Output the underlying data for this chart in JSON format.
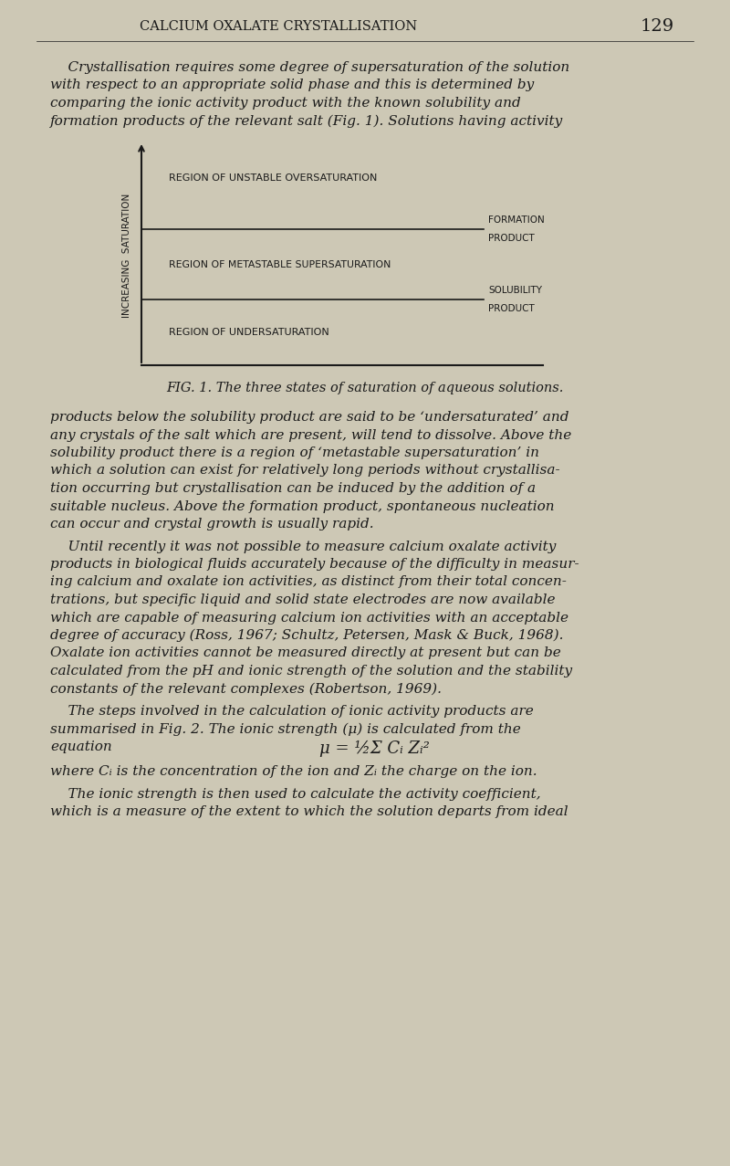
{
  "page_title": "CALCIUM OXALATE CRYSTALLISATION",
  "page_number": "129",
  "bg_color": "#cdc8b5",
  "text_color": "#1a1a1a",
  "fig_caption": "FIG. 1. The three states of saturation of aqueous solutions.",
  "fig_ylabel": "INCREASING  SATURATION",
  "region_unstable": "REGION OF UNSTABLE OVERSATURATION",
  "formation_label1": "FORMATION",
  "formation_label2": "PRODUCT",
  "region_metastable": "REGION OF METASTABLE SUPERSATURATION",
  "solubility_label1": "SOLUBILITY",
  "solubility_label2": "PRODUCT",
  "region_undersaturation": "REGION OF UNDERSATURATION",
  "p1_lines": [
    "    Crystallisation requires some degree of supersaturation of the solution",
    "with respect to an appropriate solid phase and this is determined by",
    "comparing the ionic activity product with the known solubility and",
    "formation products of the relevant salt (Fig. 1). Solutions having activity"
  ],
  "p2_lines": [
    "products below the solubility product are said to be ‘undersaturated’ and",
    "any crystals of the salt which are present, will tend to dissolve. Above the",
    "solubility product there is a region of ‘metastable supersaturation’ in",
    "which a solution can exist for relatively long periods without crystallisa-",
    "tion occurring but crystallisation can be induced by the addition of a",
    "suitable nucleus. Above the formation product, spontaneous nucleation",
    "can occur and crystal growth is usually rapid."
  ],
  "p3_lines": [
    "    Until recently it was not possible to measure calcium oxalate activity",
    "products in biological fluids accurately because of the difficulty in measur-",
    "ing calcium and oxalate ion activities, as distinct from their total concen-",
    "trations, but specific liquid and solid state electrodes are now available",
    "which are capable of measuring calcium ion activities with an acceptable",
    "degree of accuracy (Ross, 1967; Schultz, Petersen, Mask & Buck, 1968).",
    "Oxalate ion activities cannot be measured directly at present but can be",
    "calculated from the pH and ionic strength of the solution and the stability",
    "constants of the relevant complexes (Robertson, 1969)."
  ],
  "p4_lines": [
    "    The steps involved in the calculation of ionic activity products are",
    "summarised in Fig. 2. The ionic strength (μ) is calculated from the"
  ],
  "p4_word": "equation",
  "equation": "μ = ½Σ Cᵢ Zᵢ²",
  "p5_line": "where Cᵢ is the concentration of the ion and Zᵢ the charge on the ion.",
  "p6_lines": [
    "    The ionic strength is then used to calculate the activity coefficient,",
    "which is a measure of the extent to which the solution departs from ideal"
  ]
}
